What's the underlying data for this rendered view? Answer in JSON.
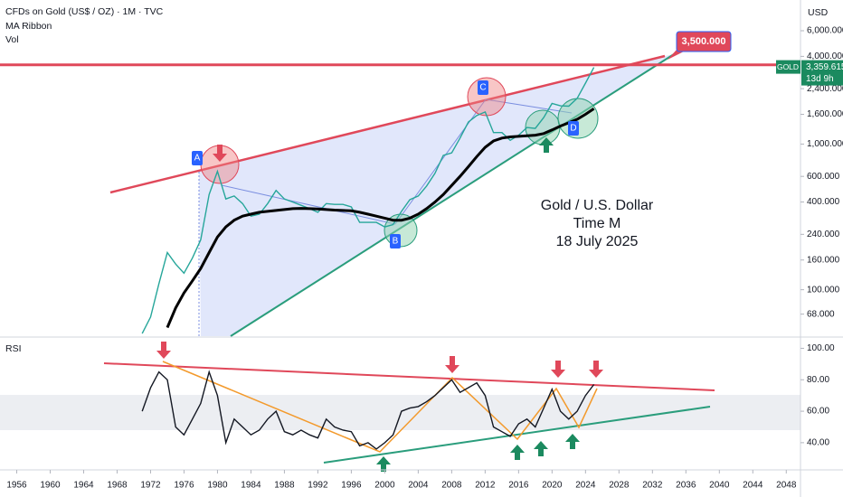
{
  "header": {
    "title": "CFDs on Gold (US$ / OZ) · 1M · TVC",
    "indicator": "MA Ribbon",
    "volume": "Vol",
    "currency": "USD"
  },
  "chart_data": [
    {
      "type": "line",
      "log_scale": true,
      "x": [
        1971,
        1972,
        1973,
        1974,
        1975,
        1976,
        1977,
        1978,
        1979,
        1980,
        1981,
        1982,
        1983,
        1984,
        1985,
        1986,
        1987,
        1988,
        1989,
        1990,
        1991,
        1992,
        1993,
        1994,
        1995,
        1996,
        1997,
        1998,
        1999,
        2000,
        2001,
        2002,
        2003,
        2004,
        2005,
        2006,
        2007,
        2008,
        2009,
        2010,
        2011,
        2012,
        2013,
        2014,
        2015,
        2016,
        2017,
        2018,
        2019,
        2020,
        2021,
        2022,
        2023,
        2024,
        2025
      ],
      "series": [
        {
          "name": "GOLD",
          "color": "#26a69a",
          "values": [
            50,
            65,
            110,
            180,
            150,
            130,
            165,
            220,
            450,
            650,
            420,
            440,
            390,
            320,
            330,
            390,
            480,
            420,
            400,
            380,
            360,
            340,
            390,
            385,
            385,
            370,
            290,
            290,
            290,
            270,
            280,
            345,
            415,
            440,
            515,
            630,
            835,
            870,
            1100,
            1420,
            1570,
            1660,
            1200,
            1200,
            1060,
            1150,
            1300,
            1280,
            1520,
            1900,
            1830,
            1820,
            2060,
            2620,
            3359.615
          ]
        },
        {
          "name": "MA Ribbon",
          "color": "#000000",
          "values": [
            null,
            null,
            null,
            55,
            75,
            95,
            115,
            140,
            180,
            230,
            270,
            300,
            320,
            330,
            340,
            345,
            350,
            355,
            360,
            362,
            360,
            358,
            355,
            352,
            350,
            348,
            340,
            330,
            320,
            310,
            300,
            300,
            310,
            330,
            360,
            400,
            450,
            520,
            600,
            700,
            820,
            950,
            1050,
            1100,
            1120,
            1130,
            1140,
            1150,
            1180,
            1250,
            1330,
            1400,
            1480,
            1600,
            1750
          ]
        }
      ],
      "xlim": [
        1954,
        2049.7
      ],
      "ylim": [
        48,
        9750
      ],
      "yticks": [
        {
          "value": 6000,
          "label": "6,000.000"
        },
        {
          "value": 4000,
          "label": "4,000.000"
        },
        {
          "value": 2400,
          "label": "2,400.000"
        },
        {
          "value": 1600,
          "label": "1,600.000"
        },
        {
          "value": 1000,
          "label": "1,000.000"
        },
        {
          "value": 600,
          "label": "600.000"
        },
        {
          "value": 400,
          "label": "400.000"
        },
        {
          "value": 240,
          "label": "240.000"
        },
        {
          "value": 160,
          "label": "160.000"
        },
        {
          "value": 100,
          "label": "100.000"
        },
        {
          "value": 68,
          "label": "68.000"
        }
      ],
      "target": {
        "value": 3500,
        "label": "3,500.000",
        "color": "#e0485a"
      },
      "last_price": {
        "value": 3359.615,
        "label": "3,359.615",
        "symbol": "GOLD",
        "countdown": "13d 9h",
        "color": "#1b8a5f"
      },
      "annotations": [
        "A",
        "B",
        "C",
        "D",
        "Gold / U.S. Dollar",
        "Time M",
        "18 July 2025"
      ]
    },
    {
      "type": "line",
      "title": "RSI",
      "x": [
        1971,
        1972,
        1973,
        1974,
        1975,
        1976,
        1977,
        1978,
        1979,
        1980,
        1981,
        1982,
        1983,
        1984,
        1985,
        1986,
        1987,
        1988,
        1989,
        1990,
        1991,
        1992,
        1993,
        1994,
        1995,
        1996,
        1997,
        1998,
        1999,
        2000,
        2001,
        2002,
        2003,
        2004,
        2005,
        2006,
        2007,
        2008,
        2009,
        2010,
        2011,
        2012,
        2013,
        2014,
        2015,
        2016,
        2017,
        2018,
        2019,
        2020,
        2021,
        2022,
        2023,
        2024,
        2025
      ],
      "series": [
        {
          "color": "#131722",
          "values": [
            60,
            75,
            85,
            80,
            50,
            45,
            55,
            65,
            85,
            70,
            40,
            55,
            50,
            45,
            48,
            55,
            60,
            47,
            45,
            48,
            45,
            43,
            55,
            50,
            48,
            47,
            38,
            40,
            36,
            40,
            45,
            60,
            62,
            63,
            66,
            70,
            75,
            80,
            72,
            75,
            78,
            70,
            50,
            47,
            44,
            52,
            55,
            50,
            62,
            74,
            60,
            55,
            60,
            70,
            77
          ]
        }
      ],
      "xlim": [
        1954,
        2049.7
      ],
      "ylim": [
        25,
        106
      ],
      "yticks": [
        {
          "value": 100,
          "label": "100.00"
        },
        {
          "value": 80,
          "label": "80.00"
        },
        {
          "value": 60,
          "label": "60.00"
        },
        {
          "value": 40,
          "label": "40.00"
        }
      ],
      "xticks": [
        1956,
        1960,
        1964,
        1968,
        1972,
        1976,
        1980,
        1984,
        1988,
        1992,
        1996,
        2000,
        2004,
        2008,
        2012,
        2016,
        2020,
        2024,
        2028,
        2032,
        2036,
        2040,
        2044,
        2048
      ]
    }
  ]
}
